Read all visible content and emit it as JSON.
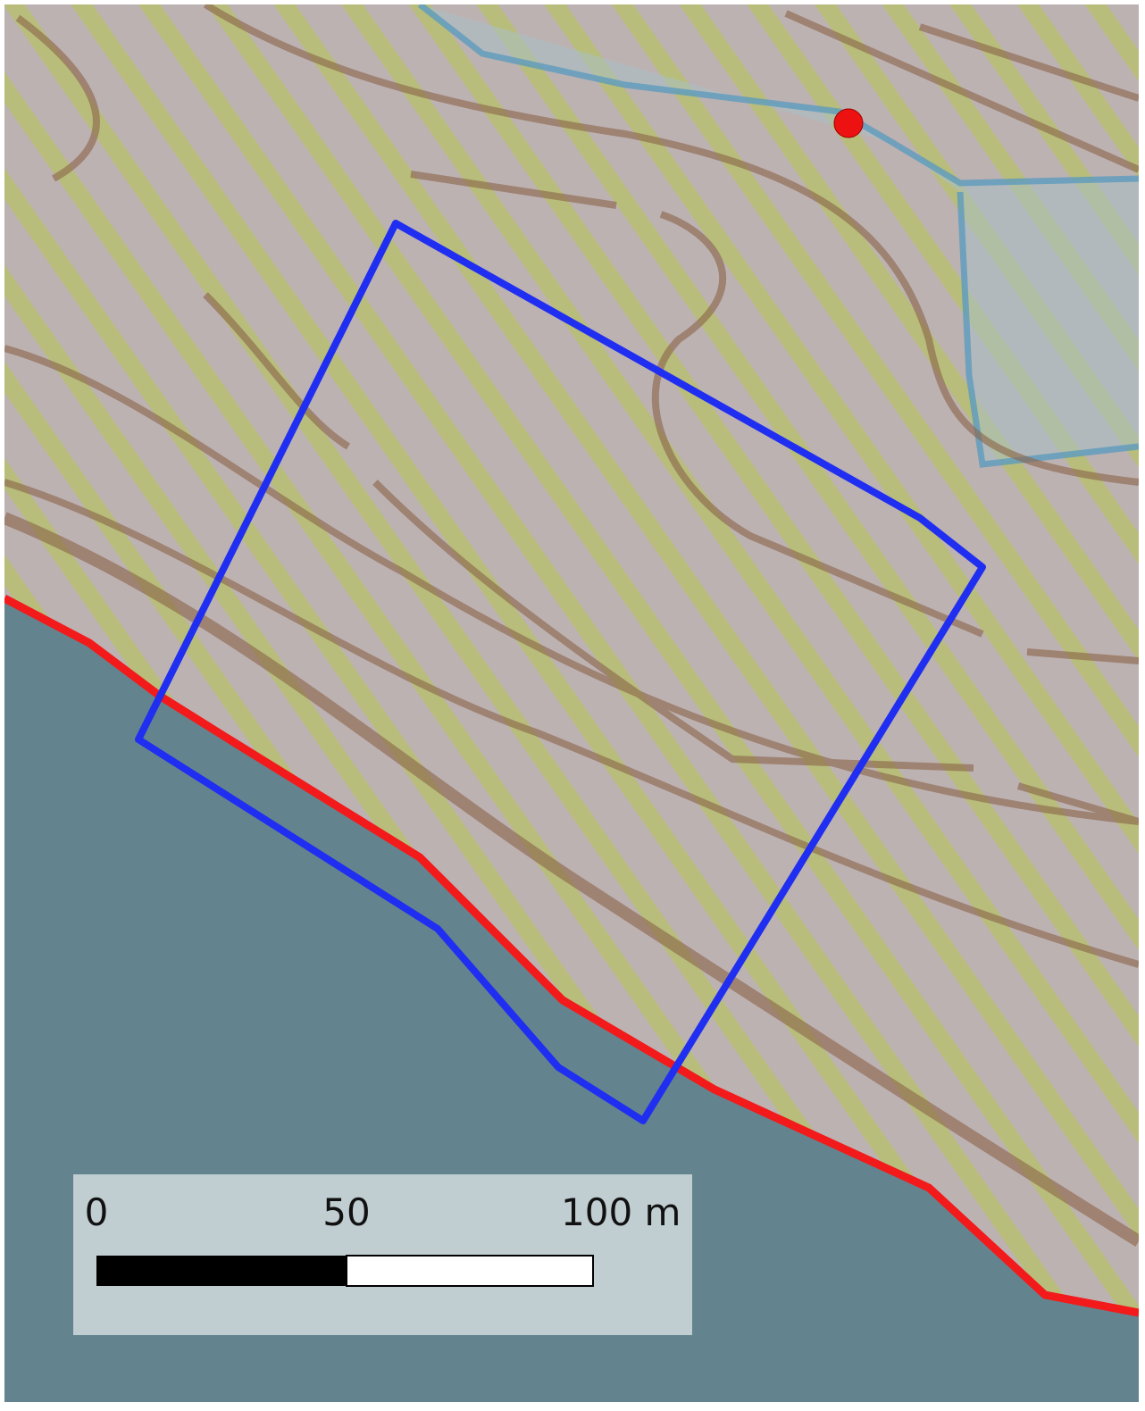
{
  "scale_bar": {
    "labels": [
      "0",
      "50",
      "100 m"
    ]
  }
}
